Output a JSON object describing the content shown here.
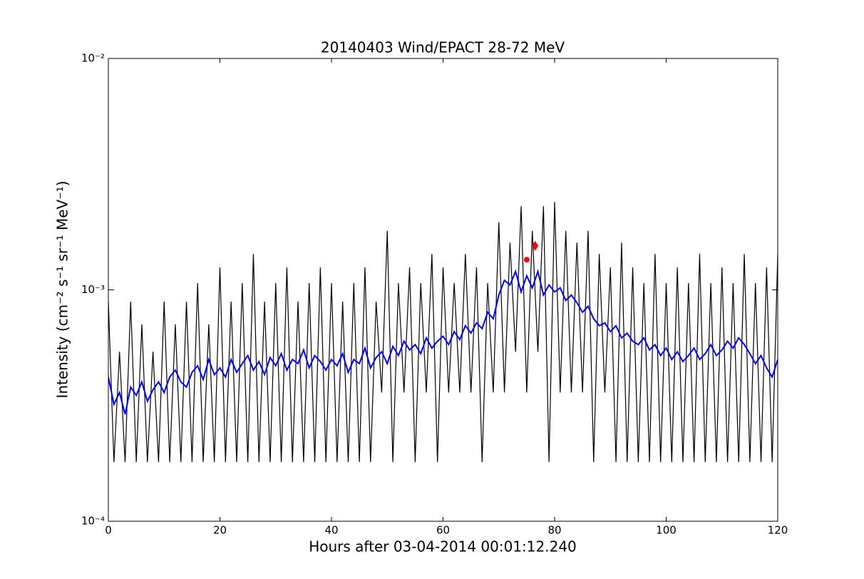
{
  "chart_data": {
    "type": "line",
    "title": "20140403 Wind/EPACT 28-72 MeV",
    "xlabel": "Hours after 03-04-2014 00:01:12.240",
    "ylabel": "Intensity (cm⁻² s⁻¹ sr⁻¹ MeV⁻¹)",
    "yscale": "log",
    "xlim": [
      0,
      120
    ],
    "xticks": [
      0,
      20,
      40,
      60,
      80,
      100,
      120
    ],
    "ylim": [
      0.0001,
      0.01
    ],
    "yticks": [
      {
        "value": 0.0001,
        "label": "10⁻⁴"
      },
      {
        "value": 0.001,
        "label": "10⁻³"
      },
      {
        "value": 0.01,
        "label": "10⁻²"
      }
    ],
    "x": [
      0,
      1,
      2,
      3,
      4,
      5,
      6,
      7,
      8,
      9,
      10,
      11,
      12,
      13,
      14,
      15,
      16,
      17,
      18,
      19,
      20,
      21,
      22,
      23,
      24,
      25,
      26,
      27,
      28,
      29,
      30,
      31,
      32,
      33,
      34,
      35,
      36,
      37,
      38,
      39,
      40,
      41,
      42,
      43,
      44,
      45,
      46,
      47,
      48,
      49,
      50,
      51,
      52,
      53,
      54,
      55,
      56,
      57,
      58,
      59,
      60,
      61,
      62,
      63,
      64,
      65,
      66,
      67,
      68,
      69,
      70,
      71,
      72,
      73,
      74,
      75,
      76,
      77,
      78,
      79,
      80,
      81,
      82,
      83,
      84,
      85,
      86,
      87,
      88,
      89,
      90,
      91,
      92,
      93,
      94,
      95,
      96,
      97,
      98,
      99,
      100,
      101,
      102,
      103,
      104,
      105,
      106,
      107,
      108,
      109,
      110,
      111,
      112,
      113,
      114,
      115,
      116,
      117,
      118,
      119,
      120
    ],
    "series": [
      {
        "color": "#000000",
        "width": 1.2,
        "values": [
          0.00089,
          0.00018,
          0.00054,
          0.00018,
          0.00089,
          0.00018,
          0.00071,
          0.00018,
          0.00054,
          0.00018,
          0.00089,
          0.00018,
          0.00071,
          0.00018,
          0.00089,
          0.00018,
          0.00107,
          0.00018,
          0.00071,
          0.00018,
          0.00125,
          0.00018,
          0.00089,
          0.00018,
          0.00107,
          0.00018,
          0.00143,
          0.00018,
          0.00089,
          0.00018,
          0.00107,
          0.00018,
          0.00125,
          0.00018,
          0.00089,
          0.00018,
          0.00107,
          0.00018,
          0.00125,
          0.00018,
          0.00107,
          0.00018,
          0.00089,
          0.00018,
          0.00107,
          0.00018,
          0.00125,
          0.00018,
          0.00089,
          0.00036,
          0.0018,
          0.00018,
          0.00107,
          0.00036,
          0.00125,
          0.00018,
          0.00107,
          0.00036,
          0.00143,
          0.00018,
          0.00125,
          0.00036,
          0.00107,
          0.00036,
          0.00143,
          0.00036,
          0.00125,
          0.00018,
          0.00107,
          0.00036,
          0.00196,
          0.00036,
          0.0016,
          0.00054,
          0.0023,
          0.00036,
          0.0018,
          0.00054,
          0.0023,
          0.00018,
          0.0024,
          0.00036,
          0.0018,
          0.00036,
          0.0016,
          0.00036,
          0.0018,
          0.00018,
          0.00143,
          0.00036,
          0.00125,
          0.00018,
          0.0016,
          0.00018,
          0.00125,
          0.00018,
          0.00107,
          0.00018,
          0.00143,
          0.00018,
          0.00107,
          0.00018,
          0.00125,
          0.00018,
          0.00107,
          0.00018,
          0.00143,
          0.00018,
          0.00107,
          0.00018,
          0.00125,
          0.00018,
          0.00107,
          0.00018,
          0.00143,
          0.00018,
          0.00107,
          0.00018,
          0.00125,
          0.00018,
          0.00143
        ]
      },
      {
        "color": "#0000ff",
        "width": 2,
        "values": [
          0.00042,
          0.00032,
          0.00036,
          0.00029,
          0.00038,
          0.00035,
          0.0004,
          0.00033,
          0.00037,
          0.0004,
          0.00036,
          0.00042,
          0.00045,
          0.0004,
          0.00038,
          0.00044,
          0.00047,
          0.00041,
          0.0005,
          0.00043,
          0.00046,
          0.00042,
          0.0005,
          0.00044,
          0.00048,
          0.00052,
          0.00045,
          0.00049,
          0.00043,
          0.00051,
          0.00047,
          0.00053,
          0.00045,
          0.0005,
          0.00048,
          0.00055,
          0.00046,
          0.00052,
          0.00049,
          0.00045,
          0.0005,
          0.00047,
          0.00053,
          0.00044,
          0.0005,
          0.00048,
          0.00056,
          0.00046,
          0.00051,
          0.00054,
          0.00048,
          0.00057,
          0.00052,
          0.0006,
          0.00055,
          0.00058,
          0.00053,
          0.00062,
          0.00056,
          0.0006,
          0.00063,
          0.00058,
          0.00066,
          0.00061,
          0.0007,
          0.00065,
          0.00072,
          0.00068,
          0.0008,
          0.00075,
          0.00095,
          0.0011,
          0.00105,
          0.0012,
          0.00098,
          0.00115,
          0.00102,
          0.0012,
          0.00095,
          0.00105,
          0.00098,
          0.00102,
          0.0009,
          0.00095,
          0.00088,
          0.0008,
          0.00085,
          0.00075,
          0.0007,
          0.00072,
          0.00066,
          0.0007,
          0.00062,
          0.00065,
          0.0006,
          0.00058,
          0.00062,
          0.00055,
          0.00058,
          0.00052,
          0.00056,
          0.0005,
          0.00054,
          0.00049,
          0.00052,
          0.00056,
          0.0005,
          0.00053,
          0.00058,
          0.00052,
          0.00055,
          0.0006,
          0.00056,
          0.00062,
          0.00058,
          0.00053,
          0.00048,
          0.00052,
          0.00046,
          0.00042,
          0.0005
        ]
      }
    ],
    "markers": [
      {
        "x": 75,
        "y": 0.00135,
        "color": "#ff0000",
        "shape": "circle"
      },
      {
        "x": 76.5,
        "y": 0.00155,
        "color": "#ff0000",
        "shape": "diamond"
      }
    ]
  }
}
